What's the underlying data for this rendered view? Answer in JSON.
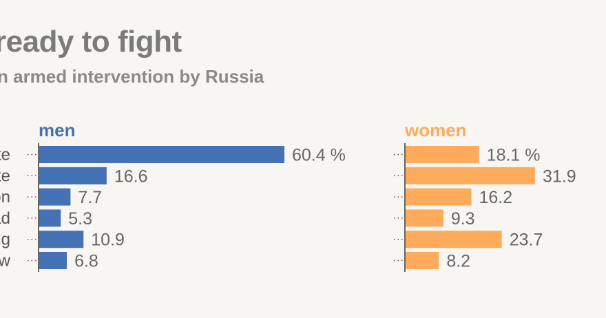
{
  "title": "ready to fight",
  "subtitle": "n armed intervention by Russia",
  "colors": {
    "men": "#4472b4",
    "women": "#ffab5c",
    "axis": "#333333"
  },
  "chart_data": {
    "type": "bar",
    "orientation": "horizontal",
    "categories": [
      "te",
      "te",
      "on",
      "ad",
      "ng",
      "w"
    ],
    "value_suffix_first_row": " %",
    "series": [
      {
        "name": "men",
        "values": [
          60.4,
          16.6,
          7.7,
          5.3,
          10.9,
          6.8
        ]
      },
      {
        "name": "women",
        "values": [
          18.1,
          31.9,
          16.2,
          9.3,
          23.7,
          8.2
        ]
      }
    ]
  }
}
